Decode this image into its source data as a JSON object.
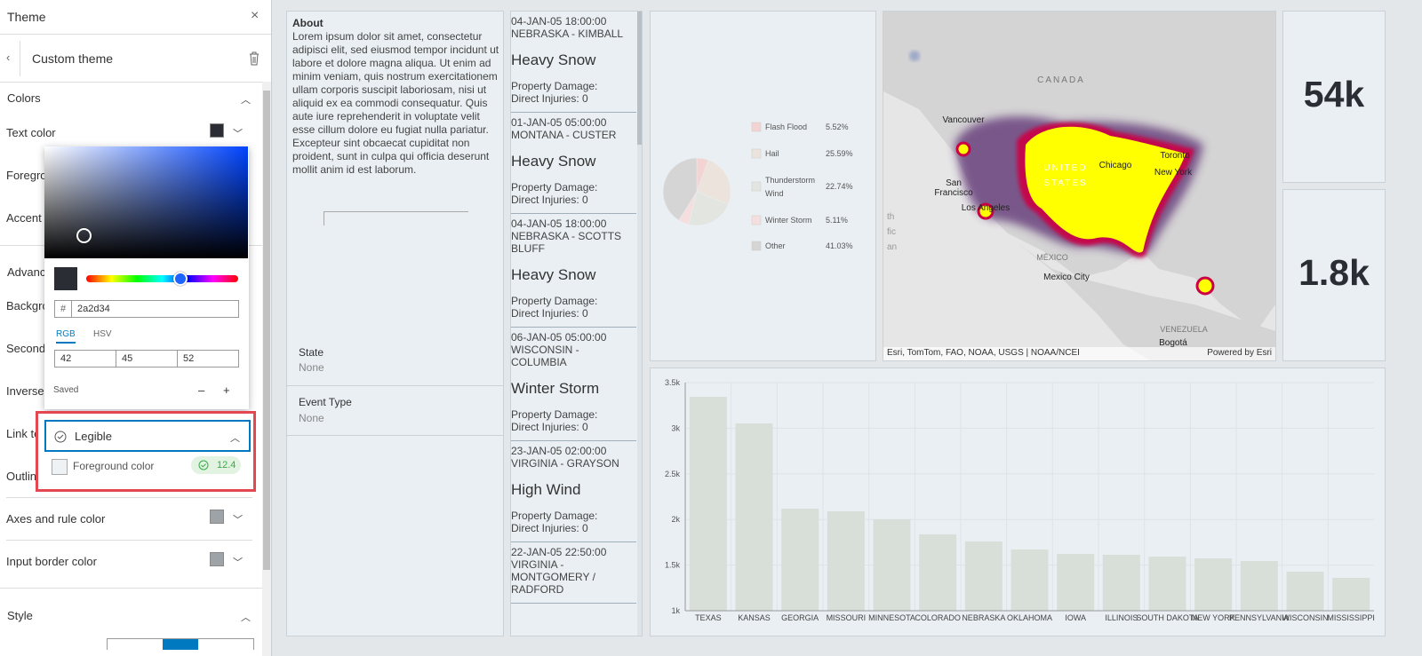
{
  "theme_panel": {
    "title": "Theme",
    "subtitle": "Custom theme",
    "sections": {
      "colors": "Colors",
      "advanced": "Advanc",
      "style": "Style"
    },
    "rows": [
      "Text color",
      "Foregro",
      "Accent c",
      "Backgro",
      "Second",
      "Inverse",
      "Link tex",
      "Outline",
      "Axes and rule color",
      "Input border color"
    ],
    "color_picker": {
      "hash": "#",
      "hex": "2a2d34",
      "tabs": [
        "RGB",
        "HSV"
      ],
      "rgb": [
        "42",
        "45",
        "52"
      ],
      "saved": "Saved",
      "saved_buttons": [
        "–",
        "+"
      ],
      "legible": "Legible",
      "check_label": "Foreground color",
      "contrast": "12.4"
    }
  },
  "about": {
    "title": "About",
    "text": "Lorem ipsum dolor sit amet, consectetur adipisci elit, sed eiusmod tempor incidunt ut labore et dolore magna aliqua. Ut enim ad minim veniam, quis nostrum exercitationem ullam corporis suscipit laboriosam, nisi ut aliquid ex ea commodi consequatur. Quis aute iure reprehenderit in voluptate velit esse cillum dolore eu fugiat nulla pariatur. Excepteur sint obcaecat cupiditat non proident, sunt in culpa qui officia deserunt mollit anim id est laborum.",
    "filters": [
      {
        "label": "State",
        "value": "None"
      },
      {
        "label": "Event Type",
        "value": "None"
      }
    ]
  },
  "events": [
    {
      "date": "04-JAN-05 18:00:00",
      "location": "NEBRASKA - KIMBALL",
      "event": "Heavy Snow",
      "damage": "Property Damage:",
      "injuries": "Direct Injuries: 0"
    },
    {
      "date": "01-JAN-05 05:00:00",
      "location": "MONTANA - CUSTER",
      "event": "Heavy Snow",
      "damage": "Property Damage:",
      "injuries": "Direct Injuries: 0"
    },
    {
      "date": "04-JAN-05 18:00:00",
      "location": "NEBRASKA - SCOTTS BLUFF",
      "event": "Heavy Snow",
      "damage": "Property Damage:",
      "injuries": "Direct Injuries: 0"
    },
    {
      "date": "06-JAN-05 05:00:00",
      "location": "WISCONSIN - COLUMBIA",
      "event": "Winter Storm",
      "damage": "Property Damage:",
      "injuries": "Direct Injuries: 0"
    },
    {
      "date": "23-JAN-05 02:00:00",
      "location": "VIRGINIA - GRAYSON",
      "event": "High Wind",
      "damage": "Property Damage:",
      "injuries": "Direct Injuries: 0"
    },
    {
      "date": "22-JAN-05 22:50:00",
      "location": "VIRGINIA - MONTGOMERY / RADFORD",
      "event": "",
      "damage": "",
      "injuries": ""
    }
  ],
  "pie_chart": {
    "type": "pie",
    "categories": [
      "Flash Flood",
      "Hail",
      "Thunderstorm Wind",
      "Winter Storm",
      "Other"
    ],
    "values": [
      5.52,
      25.59,
      22.74,
      5.11,
      41.03
    ],
    "value_labels": [
      "5.52%",
      "25.59%",
      "22.74%",
      "5.11%",
      "41.03%"
    ],
    "colors": [
      "#f4d3d3",
      "#ebe3dc",
      "#e3e6e0",
      "#f5dede",
      "#d5d5d5"
    ]
  },
  "map": {
    "labels": [
      "CANADA",
      "Vancouver",
      "UNITED",
      "STATES",
      "Chicago",
      "Toronto",
      "New York",
      "San",
      "Francisco",
      "Los Angeles",
      "MÉXICO",
      "Mexico City",
      "VENEZUELA",
      "Bogotá",
      "th",
      "fic",
      "an"
    ],
    "attribution": "Esri, TomTom, FAO, NOAA, USGS | NOAA/NCEI",
    "powered": "Powered by Esri"
  },
  "kpis": [
    "54k",
    "1.8k"
  ],
  "bar_chart": {
    "type": "bar",
    "categories": [
      "TEXAS",
      "KANSAS",
      "GEORGIA",
      "MISSOURI",
      "MINNESOTA",
      "COLORADO",
      "NEBRASKA",
      "OKLAHOMA",
      "IOWA",
      "ILLINOIS",
      "SOUTH DAKOTA",
      "NEW YORK",
      "PENNSYLVANIA",
      "WISCONSIN",
      "MISSISSIPPI"
    ],
    "values": [
      3344,
      3053,
      2119,
      2090,
      2002,
      1837,
      1759,
      1671,
      1623,
      1613,
      1593,
      1574,
      1545,
      1428,
      1360
    ],
    "color": "#d8dfd9",
    "ylim": [
      1000,
      3500
    ],
    "yticks": [
      {
        "value": 1000,
        "label": "1k"
      },
      {
        "value": 1500,
        "label": "1.5k"
      },
      {
        "value": 2000,
        "label": "2k"
      },
      {
        "value": 2500,
        "label": "2.5k"
      },
      {
        "value": 3000,
        "label": "3k"
      },
      {
        "value": 3500,
        "label": "3.5k"
      }
    ],
    "grid": true
  }
}
